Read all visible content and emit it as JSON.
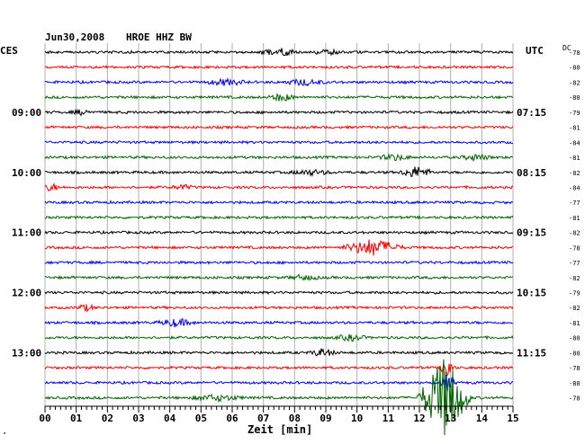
{
  "header": {
    "date": "Jun30,2008",
    "station": "HROE HHZ BW",
    "left_zone": "CES",
    "right_zone": "UTC",
    "dc_label": "DC"
  },
  "footer": {
    "axis_label": "Zeit [min]",
    "corner_mark": "\""
  },
  "chart_data": {
    "type": "line",
    "title": "Jun30,2008  HROE HHZ BW",
    "xlabel": "Zeit [min]",
    "ylabel": "",
    "xlim": [
      0,
      15
    ],
    "x_ticks": [
      "00",
      "01",
      "02",
      "03",
      "04",
      "05",
      "06",
      "07",
      "08",
      "09",
      "10",
      "11",
      "12",
      "13",
      "14",
      "15"
    ],
    "grid": true,
    "trace_colors": [
      "#000000",
      "#ff0000",
      "#0000ff",
      "#006600"
    ],
    "left_time_labels": [
      {
        "row": 4,
        "label": "09:00"
      },
      {
        "row": 8,
        "label": "10:00"
      },
      {
        "row": 12,
        "label": "11:00"
      },
      {
        "row": 16,
        "label": "12:00"
      },
      {
        "row": 20,
        "label": "13:00"
      }
    ],
    "right_time_labels": [
      {
        "row": 4,
        "label": "07:15"
      },
      {
        "row": 8,
        "label": "08:15"
      },
      {
        "row": 12,
        "label": "09:15"
      },
      {
        "row": 16,
        "label": "10:15"
      },
      {
        "row": 20,
        "label": "11:15"
      }
    ],
    "dc_offsets": [
      -78,
      -80,
      -82,
      -80,
      -79,
      -81,
      -84,
      -81,
      -82,
      -84,
      -77,
      -81,
      -82,
      -78,
      -77,
      -82,
      -79,
      -82,
      -81,
      -80,
      -80,
      -78,
      -80,
      -78
    ],
    "events": [
      {
        "row": 0,
        "minute": 7.5,
        "amplitude": 4,
        "duration": 0.7
      },
      {
        "row": 0,
        "minute": 9.0,
        "amplitude": 2.5,
        "duration": 0.6
      },
      {
        "row": 2,
        "minute": 5.8,
        "amplitude": 3,
        "duration": 0.8
      },
      {
        "row": 2,
        "minute": 8.3,
        "amplitude": 3,
        "duration": 0.8
      },
      {
        "row": 3,
        "minute": 7.6,
        "amplitude": 4,
        "duration": 0.5
      },
      {
        "row": 4,
        "minute": 1.2,
        "amplitude": 2.5,
        "duration": 0.4
      },
      {
        "row": 7,
        "minute": 11.2,
        "amplitude": 3,
        "duration": 0.6
      },
      {
        "row": 7,
        "minute": 13.8,
        "amplitude": 3,
        "duration": 0.6
      },
      {
        "row": 8,
        "minute": 8.5,
        "amplitude": 2.5,
        "duration": 0.8
      },
      {
        "row": 8,
        "minute": 11.9,
        "amplitude": 6,
        "duration": 0.6
      },
      {
        "row": 9,
        "minute": 0.2,
        "amplitude": 4,
        "duration": 0.3
      },
      {
        "row": 9,
        "minute": 4.4,
        "amplitude": 2.5,
        "duration": 0.4
      },
      {
        "row": 13,
        "minute": 10.5,
        "amplitude": 9,
        "duration": 1.1
      },
      {
        "row": 15,
        "minute": 8.3,
        "amplitude": 2.5,
        "duration": 0.6
      },
      {
        "row": 17,
        "minute": 1.3,
        "amplitude": 3,
        "duration": 0.4
      },
      {
        "row": 18,
        "minute": 4.2,
        "amplitude": 4,
        "duration": 0.7
      },
      {
        "row": 19,
        "minute": 9.8,
        "amplitude": 3,
        "duration": 0.6
      },
      {
        "row": 20,
        "minute": 8.9,
        "amplitude": 4,
        "duration": 0.5
      },
      {
        "row": 21,
        "minute": 12.9,
        "amplitude": 14,
        "duration": 0.25
      },
      {
        "row": 22,
        "minute": 12.9,
        "amplitude": 9,
        "duration": 0.3
      },
      {
        "row": 23,
        "minute": 5.5,
        "amplitude": 3,
        "duration": 1.0
      },
      {
        "row": 23,
        "minute": 12.8,
        "amplitude": 46,
        "duration": 0.9
      }
    ]
  }
}
